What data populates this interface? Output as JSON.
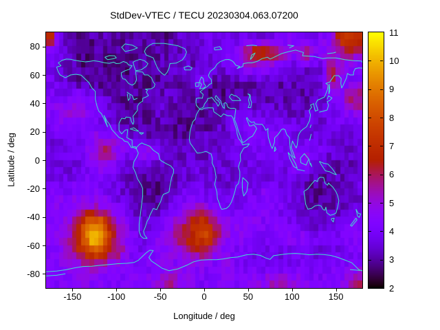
{
  "figure": {
    "title": "StdDev-VTEC / TECU 20230304.063.07200",
    "xlabel": "Longitude / deg",
    "ylabel": "Latitude / deg"
  },
  "chart_data": {
    "type": "heatmap",
    "title": "StdDev-VTEC / TECU 20230304.063.07200",
    "xlabel": "Longitude / deg",
    "ylabel": "Latitude / deg",
    "xlim": [
      -180,
      180
    ],
    "ylim": [
      -90,
      90
    ],
    "xticks": [
      -150,
      -100,
      -50,
      0,
      50,
      100,
      150
    ],
    "yticks": [
      80,
      60,
      40,
      20,
      0,
      -20,
      -40,
      -60,
      -80
    ],
    "grid": "off",
    "units": "TECU",
    "coastline_color": "#40E0D0",
    "colorbar": {
      "min": 2,
      "max": 11,
      "ticks": [
        11,
        10,
        9,
        8,
        7,
        6,
        5,
        4,
        3,
        2
      ],
      "position": "right",
      "palette": "gnuplot-pm3d black-violet-red-yellow"
    },
    "value_grid": {
      "lon_start": -175,
      "lon_step": 10,
      "cols": 36,
      "lat_start": 85,
      "lat_step": -10,
      "rows": 18,
      "values": [
        [
          7.3,
          4.0,
          3.0,
          2.9,
          2.9,
          3.0,
          3.1,
          2.9,
          2.8,
          2.9,
          3.0,
          3.2,
          3.0,
          2.9,
          3.1,
          3.3,
          3.5,
          3.6,
          3.7,
          3.6,
          3.5,
          3.6,
          3.8,
          3.7,
          3.6,
          3.8,
          4.0,
          4.1,
          4.2,
          4.0,
          3.9,
          4.2,
          4.8,
          7.2,
          7.6,
          7.0
        ],
        [
          4.2,
          3.8,
          3.2,
          2.9,
          2.8,
          2.9,
          3.0,
          2.8,
          2.9,
          3.0,
          3.0,
          3.1,
          3.0,
          3.1,
          3.3,
          3.4,
          3.5,
          3.4,
          3.6,
          3.8,
          4.2,
          4.6,
          5.5,
          6.8,
          7.2,
          6.9,
          6.3,
          5.0,
          4.6,
          6.2,
          4.5,
          4.4,
          4.6,
          5.2,
          5.8,
          5.6
        ],
        [
          3.9,
          3.6,
          3.3,
          3.0,
          2.8,
          2.8,
          2.9,
          2.8,
          2.8,
          2.9,
          3.0,
          2.9,
          3.0,
          3.1,
          3.2,
          3.3,
          3.2,
          3.3,
          3.4,
          3.5,
          3.8,
          4.2,
          4.6,
          4.8,
          4.6,
          4.4,
          4.0,
          3.7,
          3.6,
          3.5,
          3.6,
          3.8,
          6.0,
          4.8,
          4.2,
          4.0
        ],
        [
          4.0,
          3.7,
          3.4,
          3.0,
          2.8,
          2.7,
          2.8,
          2.7,
          2.8,
          2.8,
          2.9,
          2.8,
          2.9,
          3.0,
          3.1,
          3.2,
          3.1,
          5.3,
          3.2,
          3.0,
          2.9,
          3.0,
          3.1,
          3.2,
          3.3,
          3.2,
          3.1,
          3.2,
          3.3,
          3.2,
          3.3,
          3.5,
          6.8,
          4.2,
          3.9,
          4.2
        ],
        [
          4.0,
          3.8,
          4.2,
          4.4,
          4.3,
          4.0,
          3.5,
          3.1,
          2.9,
          2.8,
          2.9,
          3.0,
          3.2,
          3.4,
          3.3,
          3.1,
          2.9,
          2.8,
          2.8,
          2.9,
          2.9,
          3.0,
          3.0,
          3.1,
          3.0,
          3.1,
          3.0,
          3.1,
          3.2,
          3.1,
          3.2,
          3.4,
          4.0,
          4.4,
          5.6,
          6.2
        ],
        [
          4.4,
          4.6,
          4.8,
          5.0,
          4.6,
          4.2,
          3.8,
          3.3,
          3.0,
          2.9,
          3.0,
          3.1,
          3.2,
          3.3,
          3.1,
          2.9,
          2.8,
          2.8,
          2.9,
          3.0,
          3.1,
          3.2,
          3.4,
          3.5,
          3.6,
          3.5,
          3.4,
          3.3,
          3.2,
          3.3,
          3.4,
          3.5,
          3.8,
          4.2,
          4.6,
          5.0
        ],
        [
          4.0,
          4.2,
          4.4,
          4.5,
          4.4,
          4.2,
          3.8,
          3.5,
          3.2,
          3.0,
          3.1,
          3.0,
          3.1,
          3.2,
          3.0,
          2.9,
          2.8,
          2.9,
          3.0,
          3.2,
          3.4,
          4.2,
          4.4,
          4.0,
          3.9,
          4.1,
          4.0,
          3.8,
          3.6,
          3.5,
          3.6,
          3.5,
          3.6,
          3.7,
          3.8,
          3.9
        ],
        [
          3.6,
          3.7,
          3.8,
          4.0,
          4.3,
          4.6,
          5.0,
          4.8,
          4.4,
          3.8,
          3.5,
          3.2,
          3.1,
          3.0,
          3.0,
          3.1,
          3.2,
          3.3,
          3.4,
          3.5,
          3.6,
          3.8,
          4.0,
          4.2,
          4.3,
          4.2,
          4.1,
          4.0,
          3.8,
          3.7,
          3.6,
          3.5,
          3.6,
          3.5,
          3.6,
          3.5
        ],
        [
          3.5,
          3.6,
          3.6,
          3.8,
          4.2,
          4.8,
          6.2,
          5.2,
          4.6,
          4.0,
          4.4,
          5.2,
          4.8,
          3.8,
          3.4,
          3.3,
          3.3,
          3.2,
          3.3,
          3.4,
          3.6,
          3.7,
          3.8,
          3.9,
          4.0,
          3.9,
          3.8,
          3.9,
          4.4,
          4.6,
          4.2,
          3.8,
          3.6,
          3.5,
          3.4,
          3.5
        ],
        [
          3.4,
          3.5,
          3.4,
          3.6,
          3.8,
          4.4,
          4.6,
          4.2,
          3.8,
          3.4,
          3.2,
          3.0,
          3.0,
          3.1,
          3.2,
          3.3,
          3.4,
          3.6,
          3.5,
          3.4,
          3.5,
          3.6,
          3.5,
          3.6,
          3.7,
          3.6,
          3.7,
          3.8,
          4.4,
          4.2,
          3.6,
          3.2,
          3.0,
          3.1,
          3.2,
          3.3
        ],
        [
          3.8,
          4.0,
          3.9,
          4.0,
          4.1,
          4.2,
          4.0,
          3.8,
          3.5,
          3.2,
          3.0,
          2.9,
          2.8,
          2.9,
          3.0,
          3.3,
          3.6,
          3.7,
          3.6,
          3.5,
          3.4,
          3.5,
          3.6,
          3.7,
          3.6,
          3.7,
          3.6,
          3.5,
          3.4,
          3.2,
          3.0,
          2.9,
          3.0,
          3.3,
          3.5,
          3.6
        ],
        [
          4.2,
          4.3,
          4.2,
          4.4,
          4.5,
          4.4,
          4.2,
          3.9,
          3.6,
          3.4,
          3.1,
          2.9,
          2.8,
          2.9,
          3.2,
          3.8,
          4.2,
          4.0,
          3.8,
          3.6,
          3.5,
          3.6,
          3.8,
          4.0,
          4.4,
          4.6,
          4.2,
          3.9,
          3.6,
          3.2,
          2.9,
          2.8,
          2.9,
          3.1,
          3.3,
          3.5
        ],
        [
          4.4,
          4.5,
          4.6,
          5.2,
          5.6,
          5.4,
          5.0,
          4.4,
          4.0,
          3.6,
          3.2,
          3.0,
          3.1,
          3.6,
          4.2,
          4.8,
          5.2,
          5.4,
          4.6,
          4.2,
          4.0,
          4.1,
          4.2,
          4.3,
          4.2,
          4.1,
          4.0,
          3.8,
          3.5,
          3.2,
          3.0,
          3.0,
          3.1,
          3.3,
          3.6,
          3.8
        ],
        [
          4.2,
          4.4,
          4.8,
          6.0,
          8.2,
          9.8,
          8.6,
          6.2,
          4.8,
          4.2,
          3.6,
          3.3,
          3.6,
          4.2,
          4.8,
          5.6,
          6.4,
          7.6,
          7.2,
          5.4,
          4.6,
          4.4,
          4.5,
          4.4,
          4.3,
          4.2,
          4.1,
          4.0,
          3.8,
          3.6,
          3.4,
          3.5,
          3.6,
          3.8,
          4.0,
          4.2
        ],
        [
          4.4,
          4.6,
          5.0,
          6.6,
          9.0,
          10.6,
          9.2,
          6.8,
          5.2,
          4.4,
          4.0,
          3.8,
          4.2,
          4.8,
          5.4,
          6.0,
          6.8,
          7.6,
          7.8,
          6.4,
          4.8,
          4.5,
          4.4,
          4.3,
          4.2,
          4.1,
          4.2,
          4.3,
          4.6,
          4.4,
          4.0,
          3.8,
          3.9,
          4.0,
          4.2,
          4.4
        ],
        [
          4.0,
          4.4,
          5.6,
          6.2,
          7.0,
          8.0,
          7.2,
          6.2,
          5.6,
          4.2,
          3.9,
          4.0,
          4.2,
          4.5,
          4.8,
          5.0,
          5.6,
          6.0,
          5.8,
          4.8,
          4.2,
          4.0,
          3.9,
          3.8,
          3.7,
          3.8,
          3.7,
          3.8,
          3.9,
          3.8,
          3.7,
          3.6,
          3.7,
          3.8,
          3.9,
          4.0
        ],
        [
          4.2,
          4.3,
          4.4,
          4.6,
          5.0,
          5.4,
          5.0,
          4.6,
          4.4,
          4.2,
          4.0,
          4.2,
          4.4,
          4.3,
          4.2,
          4.4,
          4.5,
          4.4,
          4.2,
          4.0,
          5.2,
          4.2,
          4.0,
          4.0,
          3.9,
          3.8,
          3.8,
          3.9,
          4.0,
          3.9,
          3.8,
          3.9,
          4.0,
          4.1,
          4.2,
          4.3
        ],
        [
          4.4,
          4.3,
          4.2,
          4.4,
          4.5,
          4.4,
          4.3,
          4.2,
          4.1,
          4.2,
          4.4,
          4.3,
          4.5,
          5.4,
          5.8,
          4.8,
          4.4,
          4.2,
          4.1,
          4.2,
          4.3,
          4.2,
          4.3,
          4.4,
          4.6,
          5.0,
          5.2,
          5.0,
          4.8,
          4.5,
          4.3,
          4.2,
          4.3,
          4.4,
          4.8,
          6.0
        ]
      ]
    }
  }
}
